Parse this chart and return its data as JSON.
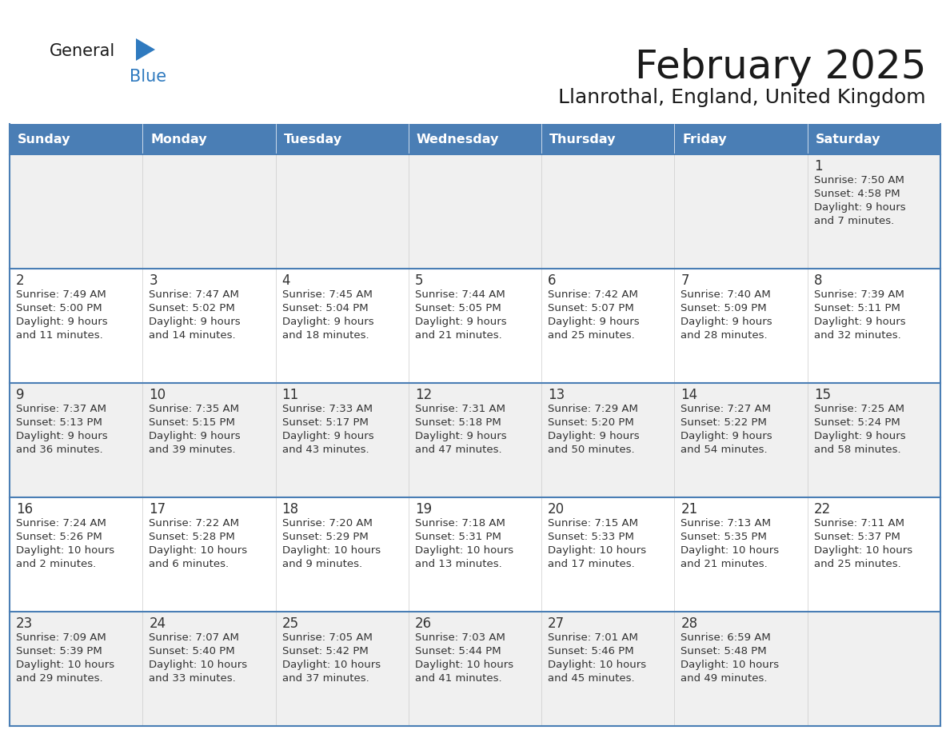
{
  "title": "February 2025",
  "subtitle": "Llanrothal, England, United Kingdom",
  "header_bg": "#4a7eb5",
  "header_text": "#FFFFFF",
  "day_names": [
    "Sunday",
    "Monday",
    "Tuesday",
    "Wednesday",
    "Thursday",
    "Friday",
    "Saturday"
  ],
  "cell_bg_light": "#f0f0f0",
  "cell_bg_white": "#ffffff",
  "cell_border_color": "#4a7eb5",
  "cell_inner_border": "#cccccc",
  "text_color": "#333333",
  "logo_general_color": "#1a1a1a",
  "logo_blue_color": "#2f7abf",
  "logo_triangle_color": "#2f7abf",
  "title_color": "#1a1a1a",
  "weeks": [
    [
      {
        "day": null,
        "sunrise": null,
        "sunset": null,
        "daylight": null
      },
      {
        "day": null,
        "sunrise": null,
        "sunset": null,
        "daylight": null
      },
      {
        "day": null,
        "sunrise": null,
        "sunset": null,
        "daylight": null
      },
      {
        "day": null,
        "sunrise": null,
        "sunset": null,
        "daylight": null
      },
      {
        "day": null,
        "sunrise": null,
        "sunset": null,
        "daylight": null
      },
      {
        "day": null,
        "sunrise": null,
        "sunset": null,
        "daylight": null
      },
      {
        "day": 1,
        "sunrise": "7:50 AM",
        "sunset": "4:58 PM",
        "daylight_hours": "9 hours",
        "daylight_mins": "7 minutes"
      }
    ],
    [
      {
        "day": 2,
        "sunrise": "7:49 AM",
        "sunset": "5:00 PM",
        "daylight_hours": "9 hours",
        "daylight_mins": "11 minutes"
      },
      {
        "day": 3,
        "sunrise": "7:47 AM",
        "sunset": "5:02 PM",
        "daylight_hours": "9 hours",
        "daylight_mins": "14 minutes"
      },
      {
        "day": 4,
        "sunrise": "7:45 AM",
        "sunset": "5:04 PM",
        "daylight_hours": "9 hours",
        "daylight_mins": "18 minutes"
      },
      {
        "day": 5,
        "sunrise": "7:44 AM",
        "sunset": "5:05 PM",
        "daylight_hours": "9 hours",
        "daylight_mins": "21 minutes"
      },
      {
        "day": 6,
        "sunrise": "7:42 AM",
        "sunset": "5:07 PM",
        "daylight_hours": "9 hours",
        "daylight_mins": "25 minutes"
      },
      {
        "day": 7,
        "sunrise": "7:40 AM",
        "sunset": "5:09 PM",
        "daylight_hours": "9 hours",
        "daylight_mins": "28 minutes"
      },
      {
        "day": 8,
        "sunrise": "7:39 AM",
        "sunset": "5:11 PM",
        "daylight_hours": "9 hours",
        "daylight_mins": "32 minutes"
      }
    ],
    [
      {
        "day": 9,
        "sunrise": "7:37 AM",
        "sunset": "5:13 PM",
        "daylight_hours": "9 hours",
        "daylight_mins": "36 minutes"
      },
      {
        "day": 10,
        "sunrise": "7:35 AM",
        "sunset": "5:15 PM",
        "daylight_hours": "9 hours",
        "daylight_mins": "39 minutes"
      },
      {
        "day": 11,
        "sunrise": "7:33 AM",
        "sunset": "5:17 PM",
        "daylight_hours": "9 hours",
        "daylight_mins": "43 minutes"
      },
      {
        "day": 12,
        "sunrise": "7:31 AM",
        "sunset": "5:18 PM",
        "daylight_hours": "9 hours",
        "daylight_mins": "47 minutes"
      },
      {
        "day": 13,
        "sunrise": "7:29 AM",
        "sunset": "5:20 PM",
        "daylight_hours": "9 hours",
        "daylight_mins": "50 minutes"
      },
      {
        "day": 14,
        "sunrise": "7:27 AM",
        "sunset": "5:22 PM",
        "daylight_hours": "9 hours",
        "daylight_mins": "54 minutes"
      },
      {
        "day": 15,
        "sunrise": "7:25 AM",
        "sunset": "5:24 PM",
        "daylight_hours": "9 hours",
        "daylight_mins": "58 minutes"
      }
    ],
    [
      {
        "day": 16,
        "sunrise": "7:24 AM",
        "sunset": "5:26 PM",
        "daylight_hours": "10 hours",
        "daylight_mins": "2 minutes"
      },
      {
        "day": 17,
        "sunrise": "7:22 AM",
        "sunset": "5:28 PM",
        "daylight_hours": "10 hours",
        "daylight_mins": "6 minutes"
      },
      {
        "day": 18,
        "sunrise": "7:20 AM",
        "sunset": "5:29 PM",
        "daylight_hours": "10 hours",
        "daylight_mins": "9 minutes"
      },
      {
        "day": 19,
        "sunrise": "7:18 AM",
        "sunset": "5:31 PM",
        "daylight_hours": "10 hours",
        "daylight_mins": "13 minutes"
      },
      {
        "day": 20,
        "sunrise": "7:15 AM",
        "sunset": "5:33 PM",
        "daylight_hours": "10 hours",
        "daylight_mins": "17 minutes"
      },
      {
        "day": 21,
        "sunrise": "7:13 AM",
        "sunset": "5:35 PM",
        "daylight_hours": "10 hours",
        "daylight_mins": "21 minutes"
      },
      {
        "day": 22,
        "sunrise": "7:11 AM",
        "sunset": "5:37 PM",
        "daylight_hours": "10 hours",
        "daylight_mins": "25 minutes"
      }
    ],
    [
      {
        "day": 23,
        "sunrise": "7:09 AM",
        "sunset": "5:39 PM",
        "daylight_hours": "10 hours",
        "daylight_mins": "29 minutes"
      },
      {
        "day": 24,
        "sunrise": "7:07 AM",
        "sunset": "5:40 PM",
        "daylight_hours": "10 hours",
        "daylight_mins": "33 minutes"
      },
      {
        "day": 25,
        "sunrise": "7:05 AM",
        "sunset": "5:42 PM",
        "daylight_hours": "10 hours",
        "daylight_mins": "37 minutes"
      },
      {
        "day": 26,
        "sunrise": "7:03 AM",
        "sunset": "5:44 PM",
        "daylight_hours": "10 hours",
        "daylight_mins": "41 minutes"
      },
      {
        "day": 27,
        "sunrise": "7:01 AM",
        "sunset": "5:46 PM",
        "daylight_hours": "10 hours",
        "daylight_mins": "45 minutes"
      },
      {
        "day": 28,
        "sunrise": "6:59 AM",
        "sunset": "5:48 PM",
        "daylight_hours": "10 hours",
        "daylight_mins": "49 minutes"
      },
      {
        "day": null,
        "sunrise": null,
        "sunset": null,
        "daylight_hours": null,
        "daylight_mins": null
      }
    ]
  ]
}
